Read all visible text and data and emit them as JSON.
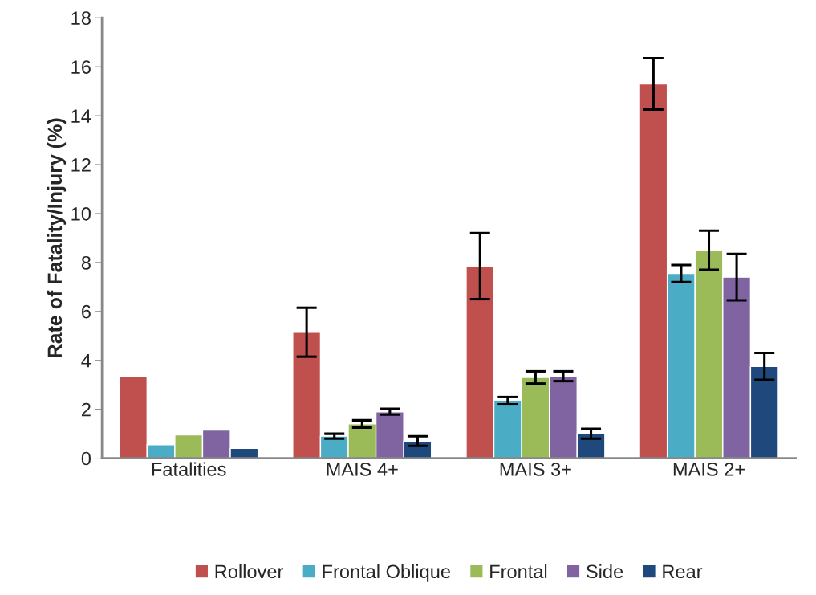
{
  "chart_data": {
    "type": "bar",
    "ylabel": "Rate of Fatality/Injury (%)",
    "categories": [
      "Fatalities",
      "MAIS 4+",
      "MAIS 3+",
      "MAIS 2+"
    ],
    "series": [
      {
        "name": "Rollover",
        "color": "#c0504d",
        "values": [
          3.35,
          5.15,
          7.85,
          15.3
        ],
        "errors": [
          null,
          1.0,
          1.35,
          1.05
        ]
      },
      {
        "name": "Frontal Oblique",
        "color": "#4bacc6",
        "values": [
          0.55,
          0.9,
          2.35,
          7.55
        ],
        "errors": [
          null,
          0.1,
          0.15,
          0.35
        ]
      },
      {
        "name": "Frontal",
        "color": "#9bbb59",
        "values": [
          0.95,
          1.4,
          3.3,
          8.5
        ],
        "errors": [
          null,
          0.15,
          0.25,
          0.8
        ]
      },
      {
        "name": "Side",
        "color": "#8064a2",
        "values": [
          1.15,
          1.9,
          3.35,
          7.4
        ],
        "errors": [
          null,
          0.12,
          0.2,
          0.95
        ]
      },
      {
        "name": "Rear",
        "color": "#1f497d",
        "values": [
          0.4,
          0.7,
          1.0,
          3.75
        ],
        "errors": [
          null,
          0.2,
          0.2,
          0.55
        ]
      }
    ],
    "ylim": [
      0,
      18
    ],
    "yticks": [
      0,
      2,
      4,
      6,
      8,
      10,
      12,
      14,
      16,
      18
    ],
    "grid": false,
    "legend": "bottom"
  }
}
